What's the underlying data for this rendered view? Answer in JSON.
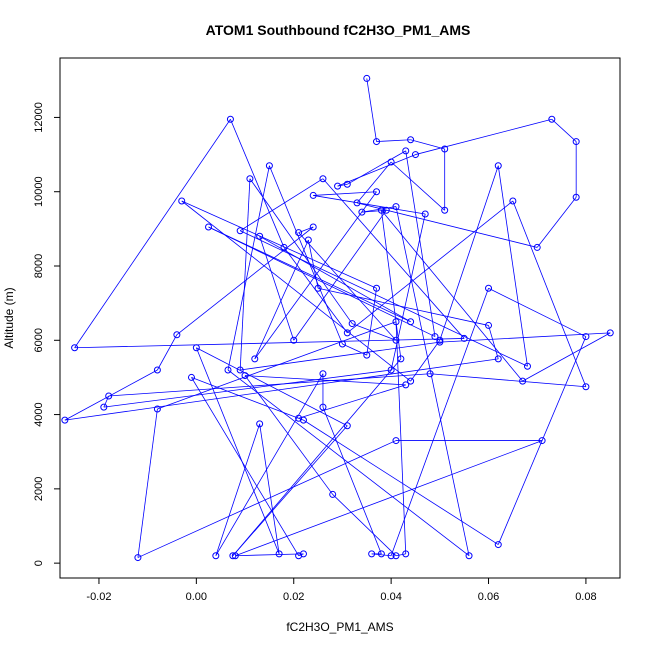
{
  "chart_data": {
    "type": "line",
    "title": "ATOM1 Southbound fC2H3O_PM1_AMS",
    "xlabel": "fC2H3O_PM1_AMS",
    "ylabel": "Altitude (m)",
    "xlim": [
      -0.028,
      0.087
    ],
    "ylim": [
      -400,
      13600
    ],
    "x_ticks": [
      -0.02,
      0.0,
      0.02,
      0.04,
      0.06,
      0.08
    ],
    "x_tick_labels": [
      "-0.02",
      "0.00",
      "0.02",
      "0.04",
      "0.06",
      "0.08"
    ],
    "y_ticks": [
      0,
      2000,
      4000,
      6000,
      8000,
      10000,
      12000
    ],
    "y_tick_labels": [
      "0",
      "2000",
      "4000",
      "6000",
      "8000",
      "10000",
      "12000"
    ],
    "grid": false,
    "series_color": "#0000ff",
    "marker": "open-circle",
    "series": [
      {
        "x": [
          0.035,
          0.037,
          0.044,
          0.051,
          0.051,
          0.04,
          0.033,
          0.07,
          0.078,
          0.078,
          0.073,
          0.045,
          0.029,
          0.031,
          0.043,
          0.049,
          0.0025,
          0.044,
          0.013,
          0.02,
          0.039,
          0.034,
          0.041,
          0.056,
          0.0065,
          0.015,
          0.03,
          0.035,
          0.037,
          -0.003,
          0.044,
          0.05,
          0.062,
          0.068,
          0.009,
          0.026,
          0.055,
          -0.025,
          0.007,
          0.018,
          0.031,
          0.065,
          0.08,
          0.048,
          -0.018,
          -0.019,
          0.04,
          0.047,
          0.024,
          0.037,
          0.012,
          0.023,
          0.025,
          0.06,
          0.062,
          -0.027,
          -0.008,
          -0.004,
          0.024,
          0.021,
          0.041,
          0.032,
          0.011,
          0.009,
          0.05,
          0.085,
          0.067,
          0.038,
          0.042,
          0.0075,
          0.031,
          0.0,
          0.017,
          0.013,
          0.004,
          0.026,
          0.026,
          0.038,
          0.036,
          0.04,
          0.06,
          0.08,
          0.062,
          0.022,
          -0.001,
          0.021,
          0.022,
          0.008,
          0.071,
          0.041,
          -0.012,
          -0.008,
          0.041,
          0.043,
          0.041,
          0.028,
          0.01,
          0.043,
          0.021
        ],
        "y": [
          13050,
          11350,
          11400,
          11150,
          9500,
          10800,
          9700,
          8500,
          9850,
          11350,
          11950,
          11000,
          10150,
          10200,
          11100,
          6100,
          9050,
          6500,
          8800,
          6000,
          9500,
          9450,
          9600,
          200,
          5200,
          10700,
          5900,
          5600,
          7400,
          9750,
          4900,
          6000,
          10700,
          5300,
          8950,
          10350,
          6050,
          5800,
          11950,
          8500,
          6200,
          9750,
          4750,
          5100,
          4500,
          4200,
          5200,
          9400,
          9900,
          10000,
          5500,
          8700,
          7400,
          6400,
          5500,
          3850,
          5200,
          6150,
          9050,
          8900,
          6000,
          6450,
          10350,
          5200,
          5950,
          6200,
          4900,
          9500,
          5500,
          200,
          3700,
          5800,
          250,
          3750,
          200,
          5100,
          4200,
          250,
          250,
          200,
          7400,
          6100,
          500,
          3850,
          5000,
          200,
          250,
          200,
          3300,
          3300,
          150,
          4150,
          6500,
          250,
          200,
          1850,
          5050,
          4800,
          3900
        ]
      }
    ]
  }
}
